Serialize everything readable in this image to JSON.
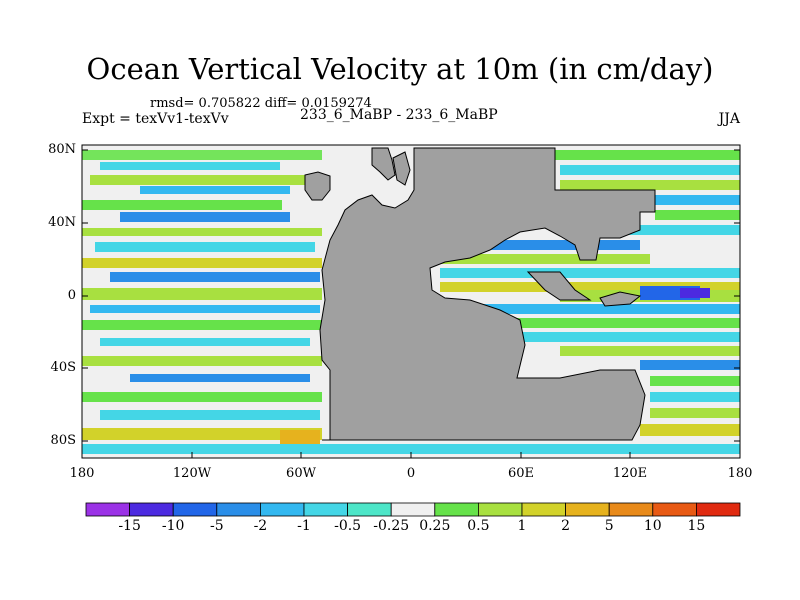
{
  "title": "Ocean Vertical Velocity at 10m (in cm/day)",
  "stats": "rmsd= 0.705822 diff= 0.0159274",
  "experiment": "Expt = texVv1-texVv",
  "case": "233_6_MaBP - 233_6_MaBP",
  "season": "JJA",
  "axes": {
    "lat_ticks": [
      "80N",
      "40N",
      "0",
      "40S",
      "80S"
    ],
    "lon_ticks": [
      "180",
      "120W",
      "60W",
      "0",
      "60E",
      "120E",
      "180"
    ]
  },
  "colorbar": {
    "labels": [
      "-15",
      "-10",
      "-5",
      "-2",
      "-1",
      "-0.5",
      "-0.25",
      "0.25",
      "0.5",
      "1",
      "2",
      "5",
      "10",
      "15"
    ],
    "colors": [
      "#9b32e6",
      "#4c2ae0",
      "#2266e8",
      "#2a8ee8",
      "#33b8f0",
      "#44d6e6",
      "#4de6c8",
      "#f0f0f0",
      "#66e24a",
      "#a8e040",
      "#d2d22a",
      "#e6b21e",
      "#e88a1a",
      "#e85a14",
      "#e02a10"
    ]
  },
  "colors": {
    "land": "#a0a0a0",
    "neutral_ocean": "#f0f0f0"
  }
}
